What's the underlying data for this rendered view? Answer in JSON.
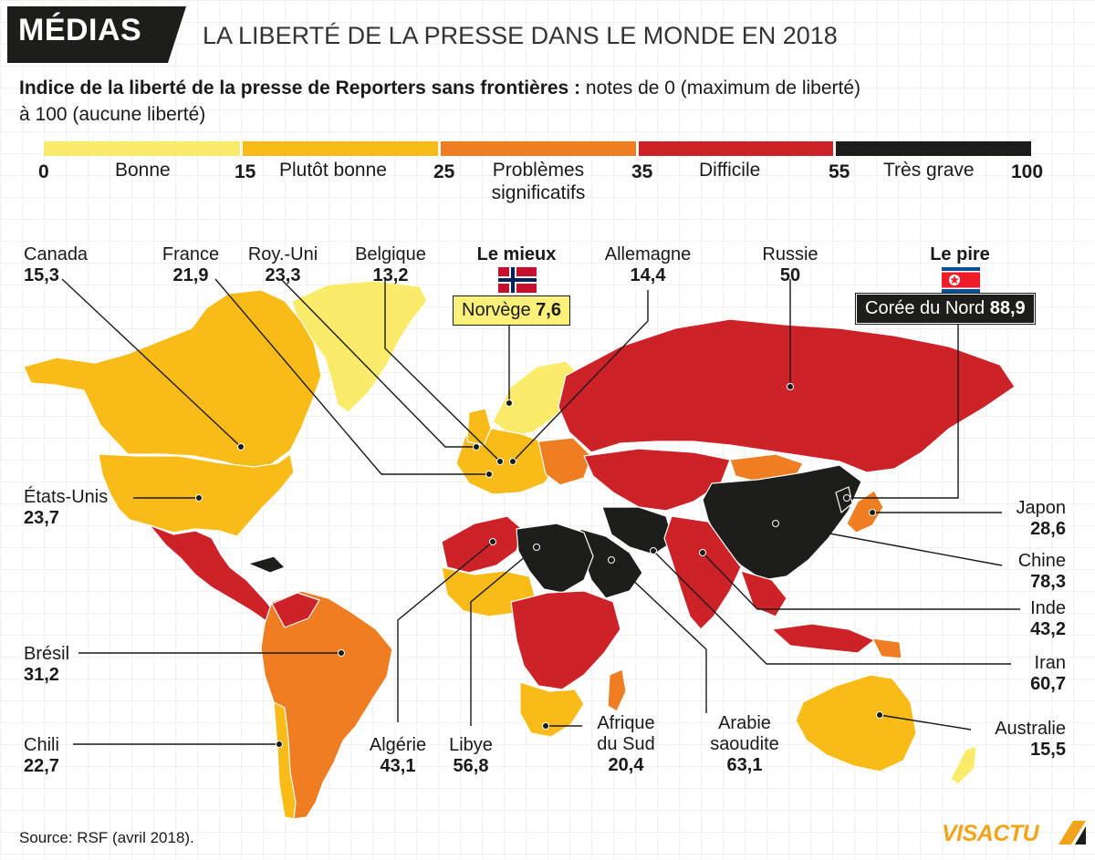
{
  "header": {
    "badge": "MÉDIAS",
    "title": "LA LIBERTÉ DE LA PRESSE DANS LE MONDE EN 2018"
  },
  "subtitle": {
    "bold": "Indice de la liberté de la presse de Reporters sans frontières :",
    "regular": " notes de 0 (maximum de liberté)",
    "line2": "à 100 (aucune liberté)"
  },
  "legend": {
    "n0": "0",
    "n15": "15",
    "n25": "25",
    "n35": "35",
    "n55": "55",
    "n100": "100",
    "cat1": "Bonne",
    "cat2": "Plutôt bonne",
    "cat3a": "Problèmes",
    "cat3b": "significatifs",
    "cat4": "Difficile",
    "cat5": "Très grave",
    "colors": {
      "bonne": "#fbeb6a",
      "plutot": "#f9bb17",
      "problemes": "#ef7d21",
      "difficile": "#cc2228",
      "grave": "#1d1d1b"
    }
  },
  "countries": {
    "canada": {
      "name": "Canada",
      "score": "15,3"
    },
    "france": {
      "name": "France",
      "score": "21,9"
    },
    "uk": {
      "name": "Roy.-Uni",
      "score": "23,3"
    },
    "belgique": {
      "name": "Belgique",
      "score": "13,2"
    },
    "allemagne": {
      "name": "Allemagne",
      "score": "14,4"
    },
    "russie": {
      "name": "Russie",
      "score": "50"
    },
    "usa": {
      "name": "États-Unis",
      "score": "23,7"
    },
    "japon": {
      "name": "Japon",
      "score": "28,6"
    },
    "chine": {
      "name": "Chine",
      "score": "78,3"
    },
    "inde": {
      "name": "Inde",
      "score": "43,2"
    },
    "iran": {
      "name": "Iran",
      "score": "60,7"
    },
    "australie": {
      "name": "Australie",
      "score": "15,5"
    },
    "bresil": {
      "name": "Brésil",
      "score": "31,2"
    },
    "chili": {
      "name": "Chili",
      "score": "22,7"
    },
    "algerie": {
      "name": "Algérie",
      "score": "43,1"
    },
    "libye": {
      "name": "Libye",
      "score": "56,8"
    },
    "afsud": {
      "name1": "Afrique",
      "name2": "du Sud",
      "score": "20,4"
    },
    "arabie": {
      "name1": "Arabie",
      "name2": "saoudite",
      "score": "63,1"
    }
  },
  "best": {
    "heading": "Le mieux",
    "name": "Norvège",
    "score": "7,6"
  },
  "worst": {
    "heading": "Le pire",
    "name": "Corée du Nord",
    "score": "88,9"
  },
  "source": "Source: RSF (avril 2018).",
  "logo": "VISACTU"
}
